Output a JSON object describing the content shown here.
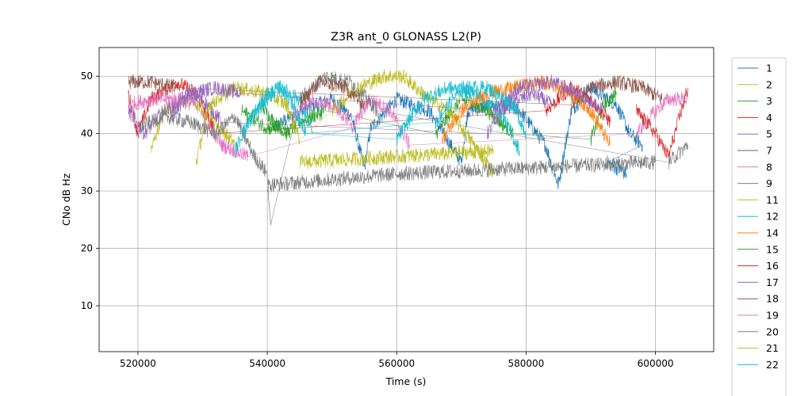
{
  "chart_data": {
    "type": "line",
    "title": "Z3R ant_0 GLONASS L2(P)",
    "xlabel": "Time (s)",
    "ylabel": "CNo dB Hz",
    "xlim": [
      514000,
      609000
    ],
    "ylim": [
      2,
      55
    ],
    "x_ticks": [
      520000,
      540000,
      560000,
      580000,
      600000
    ],
    "x_tick_labels": [
      "520000",
      "540000",
      "560000",
      "580000",
      "600000"
    ],
    "y_ticks": [
      10,
      20,
      30,
      40,
      50
    ],
    "y_tick_labels": [
      "10",
      "20",
      "30",
      "40",
      "50"
    ],
    "grid": true,
    "legend_position": "right, outside plot",
    "series": [
      {
        "name": "1",
        "color": "#1f77b4",
        "segments": [
          [
            [
              541000,
              41
            ],
            [
              545000,
              44
            ],
            [
              550000,
              46
            ],
            [
              553000,
              43
            ],
            [
              555000,
              34
            ],
            [
              556000,
              41
            ],
            [
              560000,
              46
            ],
            [
              565000,
              44
            ],
            [
              570000,
              35
            ],
            [
              571000,
              44
            ],
            [
              575000,
              45
            ],
            [
              579000,
              44
            ],
            [
              583000,
              38
            ],
            [
              585000,
              31
            ],
            [
              587000,
              44
            ],
            [
              590000,
              48
            ],
            [
              594000,
              45
            ],
            [
              596000,
              40
            ],
            [
              598000,
              38
            ]
          ],
          [
            [
              592500,
              35
            ],
            [
              595500,
              33
            ]
          ]
        ]
      },
      {
        "name": "2",
        "color": "#bcbd22",
        "segments": [
          [
            [
              522000,
              37
            ],
            [
              524000,
              44
            ],
            [
              528000,
              46
            ],
            [
              532000,
              42
            ],
            [
              535000,
              38
            ]
          ]
        ]
      },
      {
        "name": "3",
        "color": "#2ca02c",
        "segments": [
          [
            [
              539000,
              45
            ],
            [
              541000,
              42
            ],
            [
              543000,
              40
            ],
            [
              545000,
              42
            ],
            [
              549000,
              44
            ]
          ],
          [
            [
              566000,
              40
            ],
            [
              570000,
              46
            ],
            [
              574000,
              44
            ],
            [
              578000,
              40
            ]
          ],
          [
            [
              590000,
              39
            ],
            [
              592000,
              45
            ],
            [
              594000,
              47
            ]
          ]
        ]
      },
      {
        "name": "4",
        "color": "#d62728",
        "segments": [
          [
            [
              518500,
              47
            ],
            [
              520000,
              40
            ],
            [
              522000,
              46
            ],
            [
              526000,
              49
            ],
            [
              529000,
              47
            ],
            [
              532000,
              40
            ]
          ],
          [
            [
              583000,
              44
            ],
            [
              587000,
              48
            ],
            [
              590000,
              46
            ],
            [
              593000,
              42
            ]
          ]
        ]
      },
      {
        "name": "5",
        "color": "#9467bd",
        "segments": [
          [
            [
              518500,
              44
            ],
            [
              521000,
              40
            ],
            [
              524000,
              44
            ],
            [
              528000,
              47
            ],
            [
              530000,
              46
            ],
            [
              533000,
              42
            ]
          ],
          [
            [
              574000,
              40
            ],
            [
              577000,
              45
            ],
            [
              581000,
              47
            ],
            [
              584000,
              45
            ]
          ]
        ]
      },
      {
        "name": "7",
        "color": "#8c564b",
        "segments": [
          [
            [
              518500,
              49
            ],
            [
              522000,
              49
            ],
            [
              526000,
              48
            ]
          ],
          [
            [
              587000,
              45
            ],
            [
              590000,
              48
            ],
            [
              594000,
              49
            ],
            [
              598000,
              48
            ],
            [
              601000,
              46
            ]
          ]
        ]
      },
      {
        "name": "8",
        "color": "#e377c2",
        "segments": [
          [
            [
              518500,
              45
            ],
            [
              522000,
              46
            ],
            [
              526000,
              46
            ],
            [
              529000,
              45
            ]
          ],
          [
            [
              530000,
              43
            ],
            [
              533000,
              38
            ],
            [
              537000,
              36
            ]
          ],
          [
            [
              553000,
              41
            ],
            [
              556000,
              46
            ],
            [
              559000,
              44
            ],
            [
              562000,
              38
            ]
          ],
          [
            [
              597000,
              40
            ],
            [
              600000,
              44
            ],
            [
              602000,
              46
            ],
            [
              605000,
              46
            ]
          ]
        ]
      },
      {
        "name": "9",
        "color": "#7f7f7f",
        "segments": [
          [
            [
              520000,
              41
            ],
            [
              524000,
              43
            ],
            [
              528000,
              42
            ],
            [
              532000,
              40
            ],
            [
              535000,
              43
            ],
            [
              538000,
              36
            ],
            [
              540000,
              33
            ],
            [
              540500,
              24
            ]
          ],
          [
            [
              545000,
              46
            ],
            [
              549000,
              50
            ],
            [
              553000,
              49
            ],
            [
              557000,
              44
            ]
          ],
          [
            [
              602000,
              35
            ],
            [
              605000,
              38
            ]
          ]
        ]
      },
      {
        "name": "11",
        "color": "#bcbd22",
        "segments": [
          [
            [
              529000,
              35
            ],
            [
              531000,
              45
            ],
            [
              535000,
              48
            ],
            [
              540000,
              47
            ],
            [
              543000,
              45
            ],
            [
              545000,
              39
            ]
          ],
          [
            [
              550000,
              44
            ],
            [
              554000,
              48
            ],
            [
              558000,
              50
            ],
            [
              561000,
              50
            ],
            [
              565000,
              46
            ],
            [
              568000,
              44
            ],
            [
              572000,
              38
            ],
            [
              575000,
              33
            ]
          ]
        ]
      },
      {
        "name": "12",
        "color": "#17becf",
        "segments": [
          [
            [
              535000,
              37
            ],
            [
              537000,
              42
            ],
            [
              540000,
              47
            ],
            [
              542000,
              48
            ],
            [
              545000,
              46
            ],
            [
              547000,
              40
            ]
          ],
          [
            [
              560000,
              39
            ],
            [
              564000,
              46
            ],
            [
              568000,
              48
            ],
            [
              572000,
              47
            ],
            [
              576000,
              44
            ],
            [
              579000,
              37
            ]
          ]
        ]
      },
      {
        "name": "14",
        "color": "#ff7f0e",
        "segments": [
          [
            [
              567000,
              39
            ],
            [
              570000,
              44
            ],
            [
              574000,
              47
            ],
            [
              578000,
              48
            ],
            [
              582000,
              49
            ],
            [
              586000,
              48
            ],
            [
              590000,
              44
            ],
            [
              593000,
              38
            ]
          ]
        ]
      },
      {
        "name": "15",
        "color": "#2ca02c",
        "segments": [
          [
            [
              536000,
              44
            ],
            [
              540000,
              41
            ],
            [
              543000,
              41
            ]
          ]
        ]
      },
      {
        "name": "16",
        "color": "#d62728",
        "segments": [
          [
            [
              597000,
              44
            ],
            [
              600000,
              40
            ],
            [
              602000,
              36
            ],
            [
              604000,
              44
            ],
            [
              605000,
              48
            ]
          ]
        ]
      },
      {
        "name": "17",
        "color": "#9467bd",
        "segments": [
          [
            [
              525000,
              43
            ],
            [
              528000,
              47
            ],
            [
              532000,
              48
            ],
            [
              536000,
              47
            ]
          ],
          [
            [
              575000,
              44
            ],
            [
              579000,
              48
            ],
            [
              584000,
              49
            ],
            [
              588000,
              47
            ],
            [
              592000,
              44
            ]
          ]
        ]
      },
      {
        "name": "18",
        "color": "#8c564b",
        "segments": [
          [
            [
              545000,
              45
            ],
            [
              548000,
              49
            ],
            [
              552000,
              48
            ],
            [
              555000,
              45
            ]
          ]
        ]
      },
      {
        "name": "19",
        "color": "#e377c2",
        "segments": [
          [
            [
              544000,
              43
            ],
            [
              547000,
              46
            ],
            [
              550000,
              45
            ],
            [
              553000,
              42
            ]
          ]
        ]
      },
      {
        "name": "20",
        "color": "#7f7f7f",
        "segments": [
          [
            [
              540000,
              31
            ],
            [
              560000,
              33
            ],
            [
              580000,
              34
            ],
            [
              600000,
              35
            ]
          ]
        ]
      },
      {
        "name": "21",
        "color": "#bcbd22",
        "segments": [
          [
            [
              545000,
              35
            ],
            [
              560000,
              36
            ],
            [
              575000,
              37
            ]
          ]
        ]
      },
      {
        "name": "22",
        "color": "#17becf",
        "segments": [
          [
            [
              536000,
              40
            ],
            [
              539000,
              45
            ],
            [
              542000,
              48
            ],
            [
              544000,
              45
            ],
            [
              546000,
              40
            ]
          ],
          [
            [
              566000,
              42
            ],
            [
              570000,
              48
            ],
            [
              574000,
              48
            ],
            [
              578000,
              45
            ],
            [
              580000,
              40
            ]
          ]
        ]
      }
    ]
  }
}
